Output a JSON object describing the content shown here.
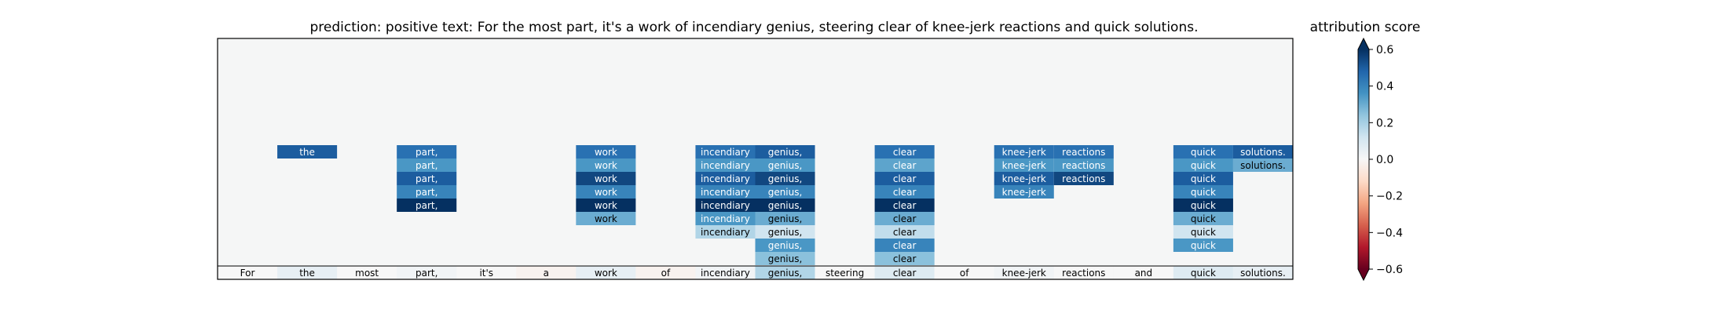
{
  "chart_data": {
    "type": "heatmap",
    "title": "prediction:  positive     text:  For the most part, it's a work of incendiary genius, steering clear of knee-jerk reactions and quick solutions.",
    "tokens": [
      "For",
      "the",
      "most",
      "part,",
      "it's",
      "a",
      "work",
      "of",
      "incendiary",
      "genius,",
      "steering",
      "clear",
      "of",
      "knee-jerk",
      "reactions",
      "and",
      "quick",
      "solutions."
    ],
    "input_row_scores": [
      0.0,
      0.05,
      0.0,
      0.02,
      0.0,
      -0.02,
      0.05,
      -0.02,
      0.02,
      0.18,
      0.0,
      0.08,
      0.0,
      0.02,
      0.0,
      0.0,
      0.08,
      0.05
    ],
    "attribution_columns": [
      {
        "token": "the",
        "values": [
          0.5
        ]
      },
      {
        "token": "part,",
        "values": [
          0.45,
          0.35,
          0.5,
          0.4,
          0.6
        ]
      },
      {
        "token": "work",
        "values": [
          0.45,
          0.35,
          0.55,
          0.4,
          0.6,
          0.3
        ]
      },
      {
        "token": "incendiary",
        "values": [
          0.45,
          0.35,
          0.5,
          0.4,
          0.62,
          0.35,
          0.18
        ]
      },
      {
        "token": "genius,",
        "values": [
          0.5,
          0.35,
          0.55,
          0.4,
          0.6,
          0.3,
          0.12,
          0.35,
          0.25
        ]
      },
      {
        "token": "clear",
        "values": [
          0.45,
          0.32,
          0.5,
          0.4,
          0.6,
          0.3,
          0.15,
          0.4,
          0.25
        ]
      },
      {
        "token": "knee-jerk",
        "values": [
          0.45,
          0.35,
          0.5,
          0.4
        ]
      },
      {
        "token": "reactions",
        "values": [
          0.45,
          0.35,
          0.55
        ]
      },
      {
        "token": "quick",
        "values": [
          0.45,
          0.35,
          0.5,
          0.4,
          0.6,
          0.3,
          0.12,
          0.35
        ]
      },
      {
        "token": "solutions.",
        "values": [
          0.5,
          0.3
        ]
      }
    ],
    "colorbar": {
      "label": "attribution score",
      "range": [
        -0.6,
        0.6
      ],
      "ticks": [
        0.6,
        0.4,
        0.2,
        0.0,
        -0.2,
        -0.4,
        -0.6
      ],
      "tick_labels": [
        "0.6",
        "0.4",
        "0.2",
        "0.0",
        "−0.2",
        "−0.4",
        "−0.6"
      ],
      "colormap": "RdBu"
    },
    "grid": false
  }
}
